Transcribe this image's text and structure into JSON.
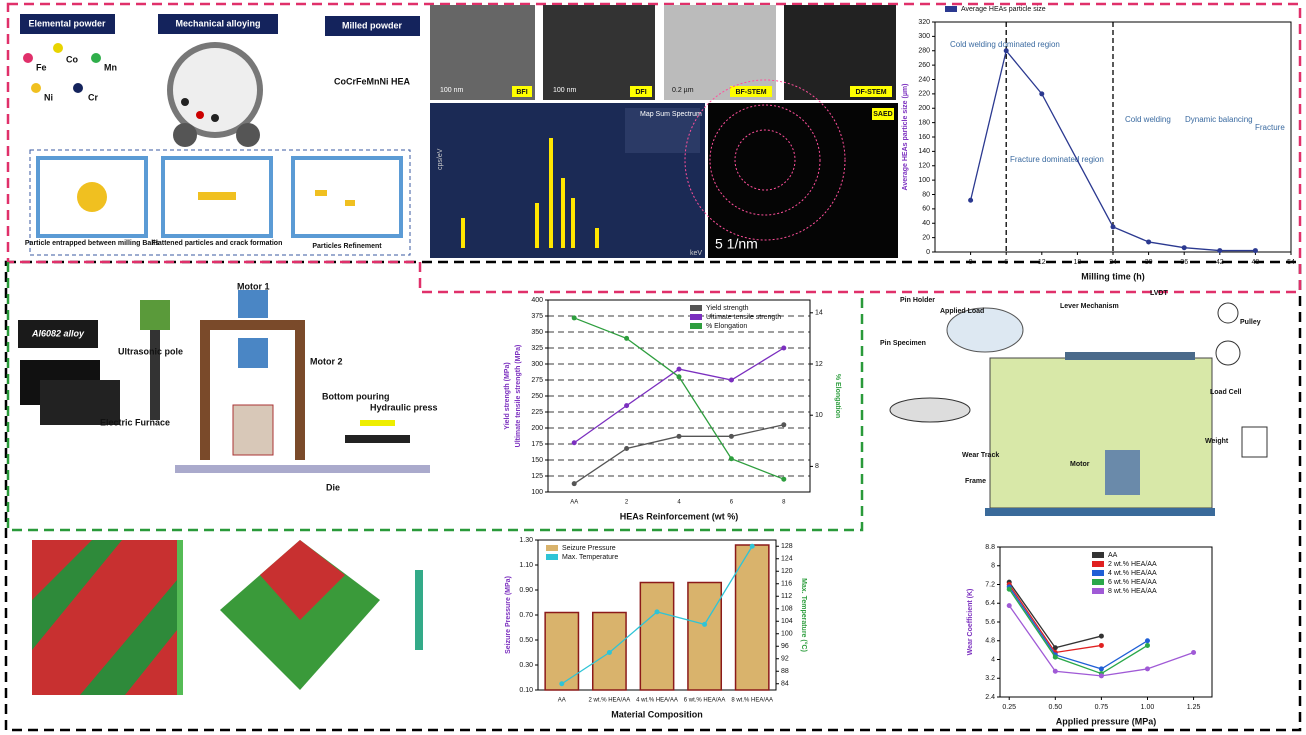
{
  "milling": {
    "elemental_powder": "Elemental powder",
    "mechanical_alloying": "Mechanical alloying",
    "milled_powder": "Milled powder",
    "elements": [
      "Fe",
      "Co",
      "Mn",
      "Ni",
      "Cr"
    ],
    "product": "CoCrFeMnNi HEA",
    "stages": [
      "Particle entrapped between milling Balls",
      "Flattened particles and crack formation",
      "Particles Refinement"
    ]
  },
  "microscopy": {
    "images": [
      "BFI",
      "DFI",
      "BF-STEM",
      "DF-STEM"
    ],
    "scales": [
      "100 nm",
      "100 nm",
      "0.2 µm"
    ],
    "saed": "SAED",
    "saed_scale": "5 1/nm",
    "eds_legend": "Map Sum Spectrum",
    "eds_xunit": "keV",
    "eds_yunit": "cps/eV"
  },
  "casting": {
    "alloy": "Al6082 alloy",
    "labels": [
      "Motor 1",
      "Motor 2",
      "Ultrasonic pole",
      "Electric Furnace",
      "Bottom pouring",
      "Hydraulic press",
      "Die"
    ]
  },
  "tribometer": {
    "labels": [
      "Pin Holder",
      "Applied Load",
      "Lever Mechanism",
      "LVDT",
      "Pulley",
      "Pin Specimen",
      "Load Cell",
      "Wear Track",
      "Motor",
      "Frame",
      "Weight"
    ]
  },
  "chart_data": [
    {
      "type": "line",
      "legend": "top",
      "xlabel": "Milling time (h)",
      "ylabels": [
        "Average HEAs particle size (µm)"
      ],
      "x": [
        0,
        6,
        12,
        24,
        30,
        36,
        42,
        48
      ],
      "xlim": [
        -6,
        54
      ],
      "xticks": [
        0,
        6,
        12,
        18,
        24,
        30,
        36,
        42,
        48,
        54
      ],
      "ylim": [
        0,
        320
      ],
      "yticks": [
        0,
        20,
        40,
        60,
        80,
        100,
        120,
        140,
        160,
        180,
        200,
        220,
        240,
        260,
        280,
        300,
        320
      ],
      "dividers": [
        6,
        24
      ],
      "annotations": [
        "Cold welding dominated region",
        "Fracture dominated region",
        "Cold welding",
        "Dynamic balancing",
        "Fracture"
      ],
      "series": [
        {
          "name": "Average HEAs particle size",
          "color": "#2b3990",
          "values": [
            72,
            280,
            220,
            35,
            14,
            6,
            2,
            2
          ]
        }
      ]
    },
    {
      "type": "line",
      "legend": "upper right",
      "grid": true,
      "xlabel": "HEAs Reinforcement (wt %)",
      "ylabels": [
        "Ultimate tensile strength (MPa)",
        "Yield strength (MPa)"
      ],
      "y2label": "% Elongation",
      "categories": [
        "AA",
        "2",
        "4",
        "6",
        "8"
      ],
      "ylim": [
        100,
        400
      ],
      "yticks": [
        100,
        125,
        150,
        175,
        200,
        225,
        250,
        275,
        300,
        325,
        350,
        375,
        400
      ],
      "y2lim": [
        7,
        14.5
      ],
      "y2ticks": [
        8,
        10,
        12,
        14
      ],
      "series": [
        {
          "name": "Yield strength",
          "color": "#555555",
          "values": [
            113,
            168,
            187,
            187,
            205
          ]
        },
        {
          "name": "Ultimate tensile strength",
          "color": "#7b2fbf",
          "values": [
            177,
            235,
            292,
            275,
            325
          ]
        },
        {
          "name": "% Elongation",
          "color": "#2e9e3e",
          "axis": "y2",
          "values": [
            13.8,
            13.0,
            11.5,
            8.3,
            7.5
          ]
        }
      ]
    },
    {
      "type": "bar",
      "legend": "upper left",
      "xlabel": "Material Composition",
      "ylabels": [
        "Seizure Pressure (MPa)"
      ],
      "y2label": "Max. Temperature (°C)",
      "categories": [
        "AA",
        "2 wt.% HEA/AA",
        "4 wt.% HEA/AA",
        "6 wt.% HEA/AA",
        "8 wt.% HEA/AA"
      ],
      "ylim": [
        0.1,
        1.3
      ],
      "yticks": [
        {
          "value": 0.1,
          "label": "0.10"
        },
        {
          "value": 0.3,
          "label": "0.30"
        },
        {
          "value": 0.5,
          "label": "0.50"
        },
        {
          "value": 0.7,
          "label": "0.70"
        },
        {
          "value": 0.9,
          "label": "0.90"
        },
        {
          "value": 1.1,
          "label": "1.10"
        },
        {
          "value": 1.3,
          "label": "1.30"
        }
      ],
      "y2lim": [
        82,
        130
      ],
      "y2ticks": [
        84,
        88,
        92,
        96,
        100,
        104,
        108,
        112,
        116,
        120,
        124,
        128
      ],
      "series": [
        {
          "name": "Seizure Pressure",
          "color": "#d9b36c",
          "values": [
            0.72,
            0.72,
            0.96,
            0.96,
            1.26
          ]
        },
        {
          "name": "Max. Temperature",
          "color": "#2fc4d6",
          "type": "line",
          "axis": "y2",
          "values": [
            84,
            94,
            107,
            103,
            128
          ]
        }
      ]
    },
    {
      "type": "line",
      "legend": "upper right",
      "xlabel": "Applied pressure (MPa)",
      "ylabels": [
        "Wear Coefficient (K)"
      ],
      "x": [
        0.25,
        0.5,
        0.75,
        1.0,
        1.25
      ],
      "xlim": [
        0.2,
        1.35
      ],
      "xticks": [
        {
          "value": 0.25,
          "label": "0.25"
        },
        {
          "value": 0.5,
          "label": "0.50"
        },
        {
          "value": 0.75,
          "label": "0.75"
        },
        {
          "value": 1.0,
          "label": "1.00"
        },
        {
          "value": 1.25,
          "label": "1.25"
        }
      ],
      "ylim": [
        2.4,
        8.8
      ],
      "yticks": [
        2.4,
        3.2,
        4.0,
        4.8,
        5.6,
        6.4,
        7.2,
        8.0,
        8.8
      ],
      "series": [
        {
          "name": "AA",
          "color": "#333333",
          "values": [
            7.3,
            4.5,
            5.0,
            null,
            null
          ]
        },
        {
          "name": "2 wt.% HEA/AA",
          "color": "#e02020",
          "values": [
            7.2,
            4.3,
            4.6,
            null,
            null
          ]
        },
        {
          "name": "4 wt.% HEA/AA",
          "color": "#1f5fd6",
          "values": [
            7.1,
            4.2,
            3.6,
            4.8,
            null
          ]
        },
        {
          "name": "6 wt.% HEA/AA",
          "color": "#2aa84a",
          "values": [
            7.0,
            4.1,
            3.4,
            4.6,
            null
          ]
        },
        {
          "name": "8 wt.% HEA/AA",
          "color": "#a05ad6",
          "values": [
            6.3,
            3.5,
            3.3,
            3.6,
            4.3
          ]
        }
      ]
    }
  ]
}
